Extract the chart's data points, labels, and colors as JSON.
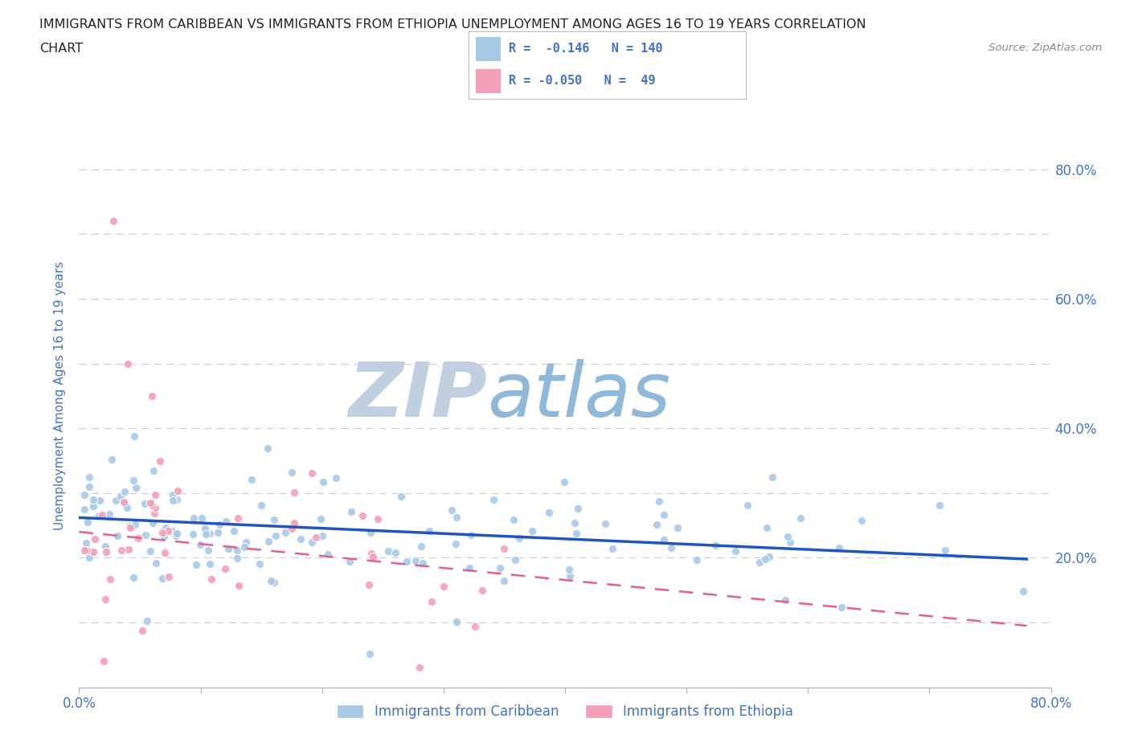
{
  "title_line1": "IMMIGRANTS FROM CARIBBEAN VS IMMIGRANTS FROM ETHIOPIA UNEMPLOYMENT AMONG AGES 16 TO 19 YEARS CORRELATION",
  "title_line2": "CHART",
  "source_text": "Source: ZipAtlas.com",
  "ylabel": "Unemployment Among Ages 16 to 19 years",
  "xlim": [
    0.0,
    0.8
  ],
  "ylim": [
    0.0,
    0.9
  ],
  "caribbean_R": -0.146,
  "caribbean_N": 140,
  "ethiopia_R": -0.05,
  "ethiopia_N": 49,
  "caribbean_color": "#a8c8e8",
  "ethiopia_color": "#f4a0b8",
  "caribbean_line_color": "#2255bb",
  "ethiopia_line_color": "#e06090",
  "watermark_zip": "ZIP",
  "watermark_atlas": "atlas",
  "watermark_color_zip": "#c0d0e0",
  "watermark_color_atlas": "#90b8d8",
  "legend_label_caribbean": "Immigrants from Caribbean",
  "legend_label_ethiopia": "Immigrants from Ethiopia",
  "title_color": "#222222",
  "axis_label_color": "#4472c4",
  "tick_label_color": "#4472c4",
  "grid_color": "#cccccc",
  "background_color": "#ffffff",
  "R_label_color": "#4472c4",
  "car_trend_x0": 0.0,
  "car_trend_y0": 0.262,
  "car_trend_x1": 0.78,
  "car_trend_y1": 0.198,
  "eth_trend_x0": 0.0,
  "eth_trend_y0": 0.24,
  "eth_trend_x1": 0.78,
  "eth_trend_y1": 0.095
}
